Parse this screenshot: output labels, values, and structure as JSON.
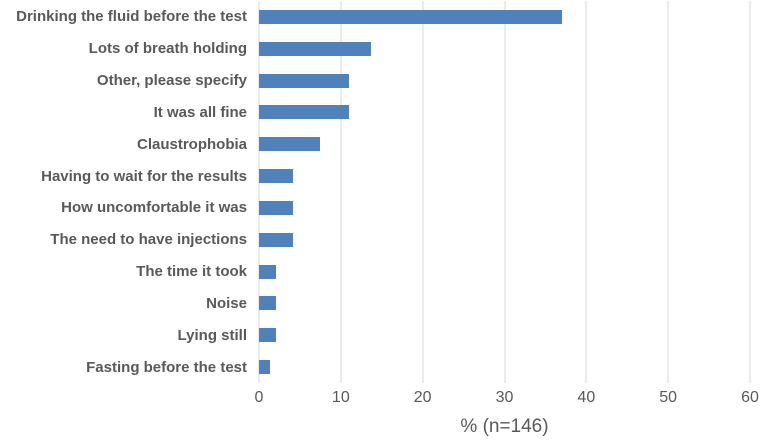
{
  "chart_data": {
    "type": "bar",
    "orientation": "horizontal",
    "title": "",
    "categories": [
      "Drinking the fluid before the test",
      "Lots of breath holding",
      "Other, please specify",
      "It was all fine",
      "Claustrophobia",
      "Having to wait for the results",
      "How uncomfortable it was",
      "The need to have injections",
      "The time it took",
      "Noise",
      "Lying still",
      "Fasting before the test"
    ],
    "values": [
      37,
      13.7,
      11,
      11,
      7.5,
      4.1,
      4.1,
      4.1,
      2.1,
      2.1,
      2.1,
      1.4
    ],
    "xlabel": "% (n=146)",
    "xlim": [
      0,
      60
    ],
    "xticks": [
      0,
      10,
      20,
      30,
      40,
      50,
      60
    ],
    "grid": true,
    "legend": false,
    "bar_color": "#4f81bd",
    "gridline_color": "#d9d9d9",
    "text_color": "#595959",
    "background_color": "#ffffff"
  }
}
